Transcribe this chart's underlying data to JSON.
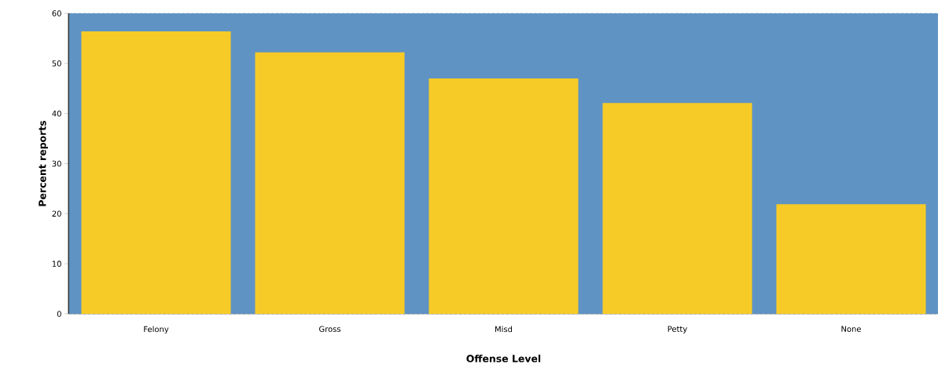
{
  "chart_data": {
    "type": "bar",
    "xlabel": "Offense Level",
    "ylabel": "Percent reports",
    "categories": [
      "Felony",
      "Gross",
      "Misd",
      "Petty",
      "None"
    ],
    "values": [
      56.4,
      52.2,
      47.0,
      42.1,
      21.9
    ],
    "color": "#f7cb27",
    "ylim": [
      0,
      60
    ],
    "yticks": [
      0,
      10,
      20,
      30,
      40,
      50,
      60
    ],
    "grid": "y",
    "bands": [
      {
        "axis": "y",
        "from": 0,
        "to": 60,
        "color": "#5f93c3"
      }
    ]
  }
}
